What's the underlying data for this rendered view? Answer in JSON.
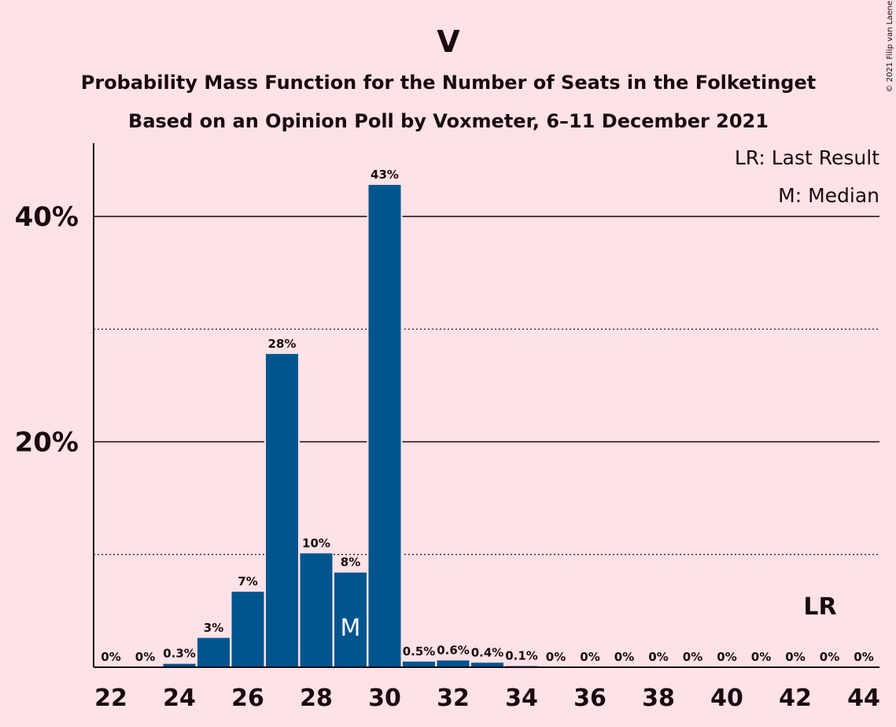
{
  "header": {
    "title": "V",
    "subtitle1": "Probability Mass Function for the Number of Seats in the Folketinget",
    "subtitle2": "Based on an Opinion Poll by Voxmeter, 6–11 December 2021",
    "copyright": "© 2021 Filip van Laenen"
  },
  "legend": {
    "lr": "LR: Last Result",
    "m": "M: Median"
  },
  "colors": {
    "background": "#FDE2E6",
    "bar": "#00558F",
    "text": "#1a0a10"
  },
  "chart_data": {
    "type": "bar",
    "x": [
      22,
      23,
      24,
      25,
      26,
      27,
      28,
      29,
      30,
      31,
      32,
      33,
      34,
      35,
      36,
      37,
      38,
      39,
      40,
      41,
      42,
      43,
      44
    ],
    "values": [
      0,
      0,
      0.3,
      2.6,
      6.7,
      27.8,
      10.1,
      8.4,
      42.8,
      0.5,
      0.6,
      0.4,
      0.1,
      0,
      0,
      0,
      0,
      0,
      0,
      0,
      0,
      0,
      0
    ],
    "labels": [
      "0%",
      "0%",
      "0.3%",
      "3%",
      "7%",
      "28%",
      "10%",
      "8%",
      "43%",
      "0.5%",
      "0.6%",
      "0.4%",
      "0.1%",
      "0%",
      "0%",
      "0%",
      "0%",
      "0%",
      "0%",
      "0%",
      "0%",
      "0%",
      "0%"
    ],
    "xticks": [
      "22",
      "24",
      "26",
      "28",
      "30",
      "32",
      "34",
      "36",
      "38",
      "40",
      "42",
      "44"
    ],
    "yticks": [
      {
        "value": 20,
        "label": "20%"
      },
      {
        "value": 40,
        "label": "40%"
      }
    ],
    "minor_gridlines": [
      10,
      30
    ],
    "ylim": [
      0,
      46.5
    ],
    "median": {
      "x": 29,
      "label": "M"
    },
    "last_result": {
      "x": 43,
      "label": "LR"
    },
    "grid": true,
    "legend_position": "top-right"
  }
}
